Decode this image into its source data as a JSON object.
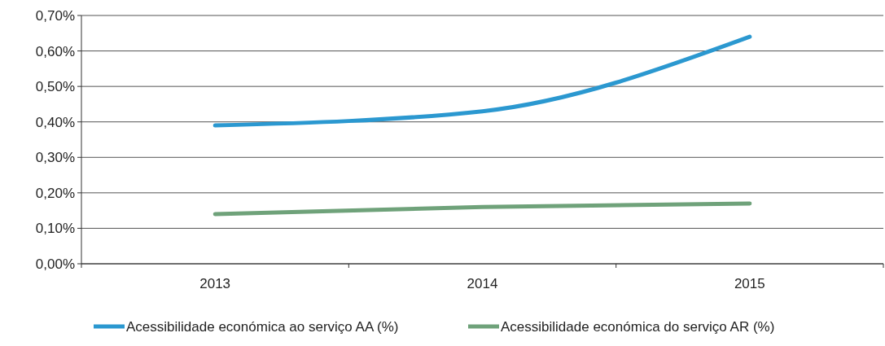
{
  "chart_data": {
    "type": "line",
    "categories": [
      "2013",
      "2014",
      "2015"
    ],
    "series": [
      {
        "name": "Acessibilidade económica ao serviço AA (%)",
        "color": "#2b98d0",
        "values": [
          0.39,
          0.43,
          0.64
        ]
      },
      {
        "name": "Acessibilidade económica do serviço AR (%)",
        "color": "#6fa27a",
        "values": [
          0.14,
          0.16,
          0.17
        ]
      }
    ],
    "ylim": [
      0,
      0.7
    ],
    "yticks": [
      {
        "value": 0,
        "label": "0,00%"
      },
      {
        "value": 0.1,
        "label": "0,10%"
      },
      {
        "value": 0.2,
        "label": "0,20%"
      },
      {
        "value": 0.3,
        "label": "0,30%"
      },
      {
        "value": 0.4,
        "label": "0,40%"
      },
      {
        "value": 0.5,
        "label": "0,50%"
      },
      {
        "value": 0.6,
        "label": "0,60%"
      },
      {
        "value": 0.7,
        "label": "0,70%"
      }
    ],
    "grid": "y",
    "legend": "bottom",
    "marker": "none",
    "line_style": "solid"
  }
}
